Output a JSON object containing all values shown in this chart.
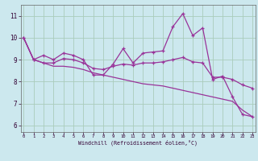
{
  "xlabel": "Windchill (Refroidissement éolien,°C)",
  "background_color": "#cce8ee",
  "grid_color": "#aaccbb",
  "line_color": "#993399",
  "axis_label_color": "#330033",
  "tick_label_color": "#330033",
  "x_ticks": [
    0,
    1,
    2,
    3,
    4,
    5,
    6,
    7,
    8,
    9,
    10,
    11,
    12,
    13,
    14,
    15,
    16,
    17,
    18,
    19,
    20,
    21,
    22,
    23
  ],
  "y_ticks": [
    6,
    7,
    8,
    9,
    10,
    11
  ],
  "ylim": [
    5.7,
    11.5
  ],
  "xlim": [
    -0.3,
    23.3
  ],
  "series1_x": [
    0,
    1,
    2,
    3,
    4,
    5,
    6,
    7,
    8,
    9,
    10,
    11,
    12,
    13,
    14,
    15,
    16,
    17,
    18,
    19,
    20,
    21,
    22,
    23
  ],
  "series1_y": [
    10.0,
    9.0,
    9.2,
    9.0,
    9.3,
    9.2,
    9.0,
    8.3,
    8.3,
    8.8,
    9.5,
    8.85,
    9.3,
    9.35,
    9.4,
    10.5,
    11.1,
    10.1,
    10.45,
    8.1,
    8.25,
    7.3,
    6.5,
    6.4
  ],
  "series2_x": [
    0,
    1,
    2,
    3,
    4,
    5,
    6,
    7,
    8,
    9,
    10,
    11,
    12,
    13,
    14,
    15,
    16,
    17,
    18,
    19,
    20,
    21,
    22,
    23
  ],
  "series2_y": [
    10.0,
    9.0,
    8.85,
    8.85,
    9.05,
    9.0,
    8.85,
    8.6,
    8.55,
    8.7,
    8.8,
    8.75,
    8.85,
    8.85,
    8.9,
    9.0,
    9.1,
    8.9,
    8.85,
    8.2,
    8.2,
    8.1,
    7.85,
    7.7
  ],
  "series3_x": [
    0,
    1,
    2,
    3,
    4,
    5,
    6,
    7,
    8,
    9,
    10,
    11,
    12,
    13,
    14,
    15,
    16,
    17,
    18,
    19,
    20,
    21,
    22,
    23
  ],
  "series3_y": [
    10.0,
    9.0,
    8.85,
    8.7,
    8.7,
    8.65,
    8.55,
    8.4,
    8.3,
    8.2,
    8.1,
    8.0,
    7.9,
    7.85,
    7.8,
    7.7,
    7.6,
    7.5,
    7.4,
    7.3,
    7.2,
    7.1,
    6.7,
    6.4
  ]
}
